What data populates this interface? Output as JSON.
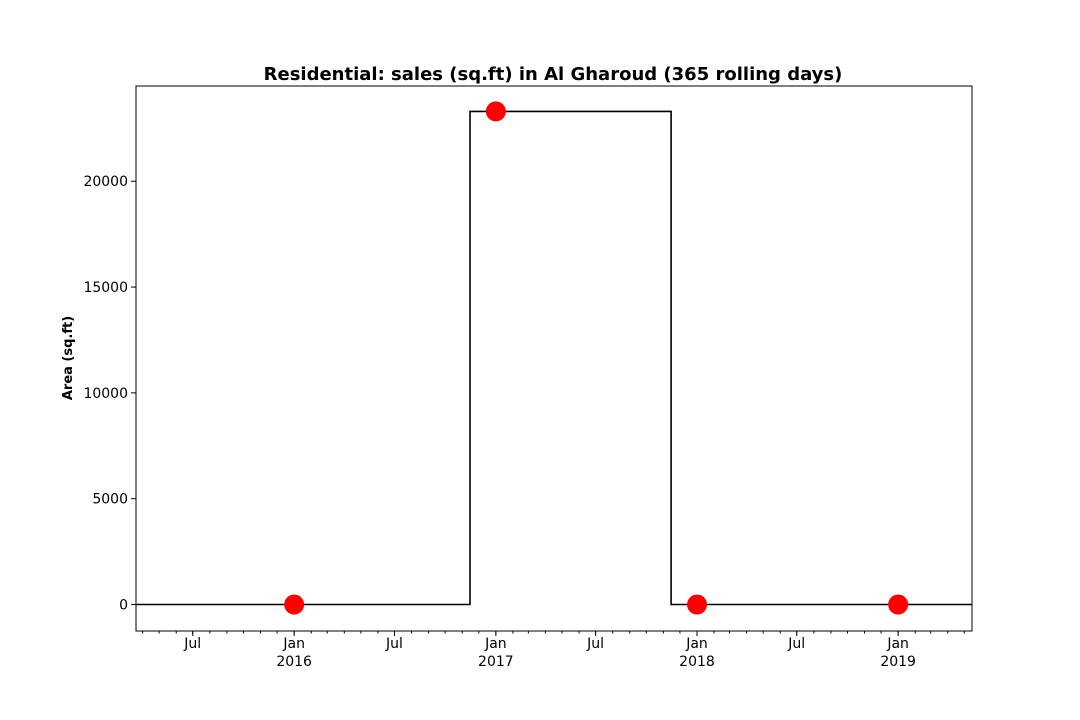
{
  "chart_data": {
    "type": "line",
    "title": "Residential: sales (sq.ft) in Al Gharoud (365 rolling days)",
    "xlabel": "",
    "ylabel": "Area (sq.ft)",
    "x_range": [
      "2015-03-20",
      "2019-05-15"
    ],
    "ylim": [
      -1250,
      24500
    ],
    "y_ticks": [
      0,
      5000,
      10000,
      15000,
      20000
    ],
    "y_tick_labels": [
      "0",
      "5000",
      "10000",
      "15000",
      "20000"
    ],
    "x_major_ticks": [
      {
        "date": "2015-07-01",
        "label": "Jul",
        "sublabel": ""
      },
      {
        "date": "2016-01-01",
        "label": "Jan",
        "sublabel": "2016"
      },
      {
        "date": "2016-07-01",
        "label": "Jul",
        "sublabel": ""
      },
      {
        "date": "2017-01-01",
        "label": "Jan",
        "sublabel": "2017"
      },
      {
        "date": "2017-07-01",
        "label": "Jul",
        "sublabel": ""
      },
      {
        "date": "2018-01-01",
        "label": "Jan",
        "sublabel": "2018"
      },
      {
        "date": "2018-07-01",
        "label": "Jul",
        "sublabel": ""
      },
      {
        "date": "2019-01-01",
        "label": "Jan",
        "sublabel": "2019"
      }
    ],
    "grid": false,
    "series": [
      {
        "style": "step",
        "color": "#000000",
        "x": [
          "2015-03-20",
          "2016-11-15",
          "2016-11-15",
          "2017-11-15",
          "2017-11-15",
          "2019-05-15"
        ],
        "values": [
          0,
          0,
          23300,
          23300,
          0,
          0
        ]
      },
      {
        "style": "markers",
        "color": "#ff0000",
        "x": [
          "2016-01-01",
          "2017-01-01",
          "2018-01-01",
          "2019-01-01"
        ],
        "values": [
          0,
          23300,
          0,
          0
        ]
      }
    ]
  }
}
